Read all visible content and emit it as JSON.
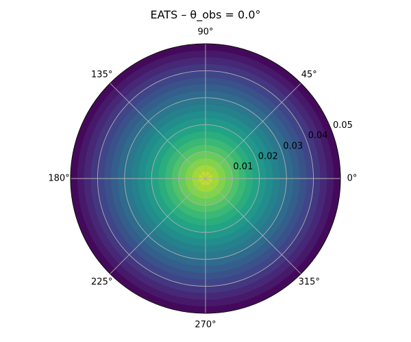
{
  "chart_data": {
    "type": "heatmap",
    "projection": "polar",
    "title": "EATS – θ_obs = 0.0°",
    "colormap": "viridis",
    "rlim": [
      0,
      0.05
    ],
    "r_ticks": [
      0.01,
      0.02,
      0.03,
      0.04,
      0.05
    ],
    "r_tick_labels": [
      "0.01",
      "0.02",
      "0.03",
      "0.04",
      "0.05"
    ],
    "theta_ticks_deg": [
      0,
      45,
      90,
      135,
      180,
      225,
      270,
      315
    ],
    "theta_tick_labels": [
      "0°",
      "45°",
      "90°",
      "135°",
      "180°",
      "225°",
      "270°",
      "315°"
    ],
    "grid": true,
    "contour_levels": 20,
    "value_profile": "maximum at r = 0, decreasing monotonically with r; no dependence on angle"
  }
}
